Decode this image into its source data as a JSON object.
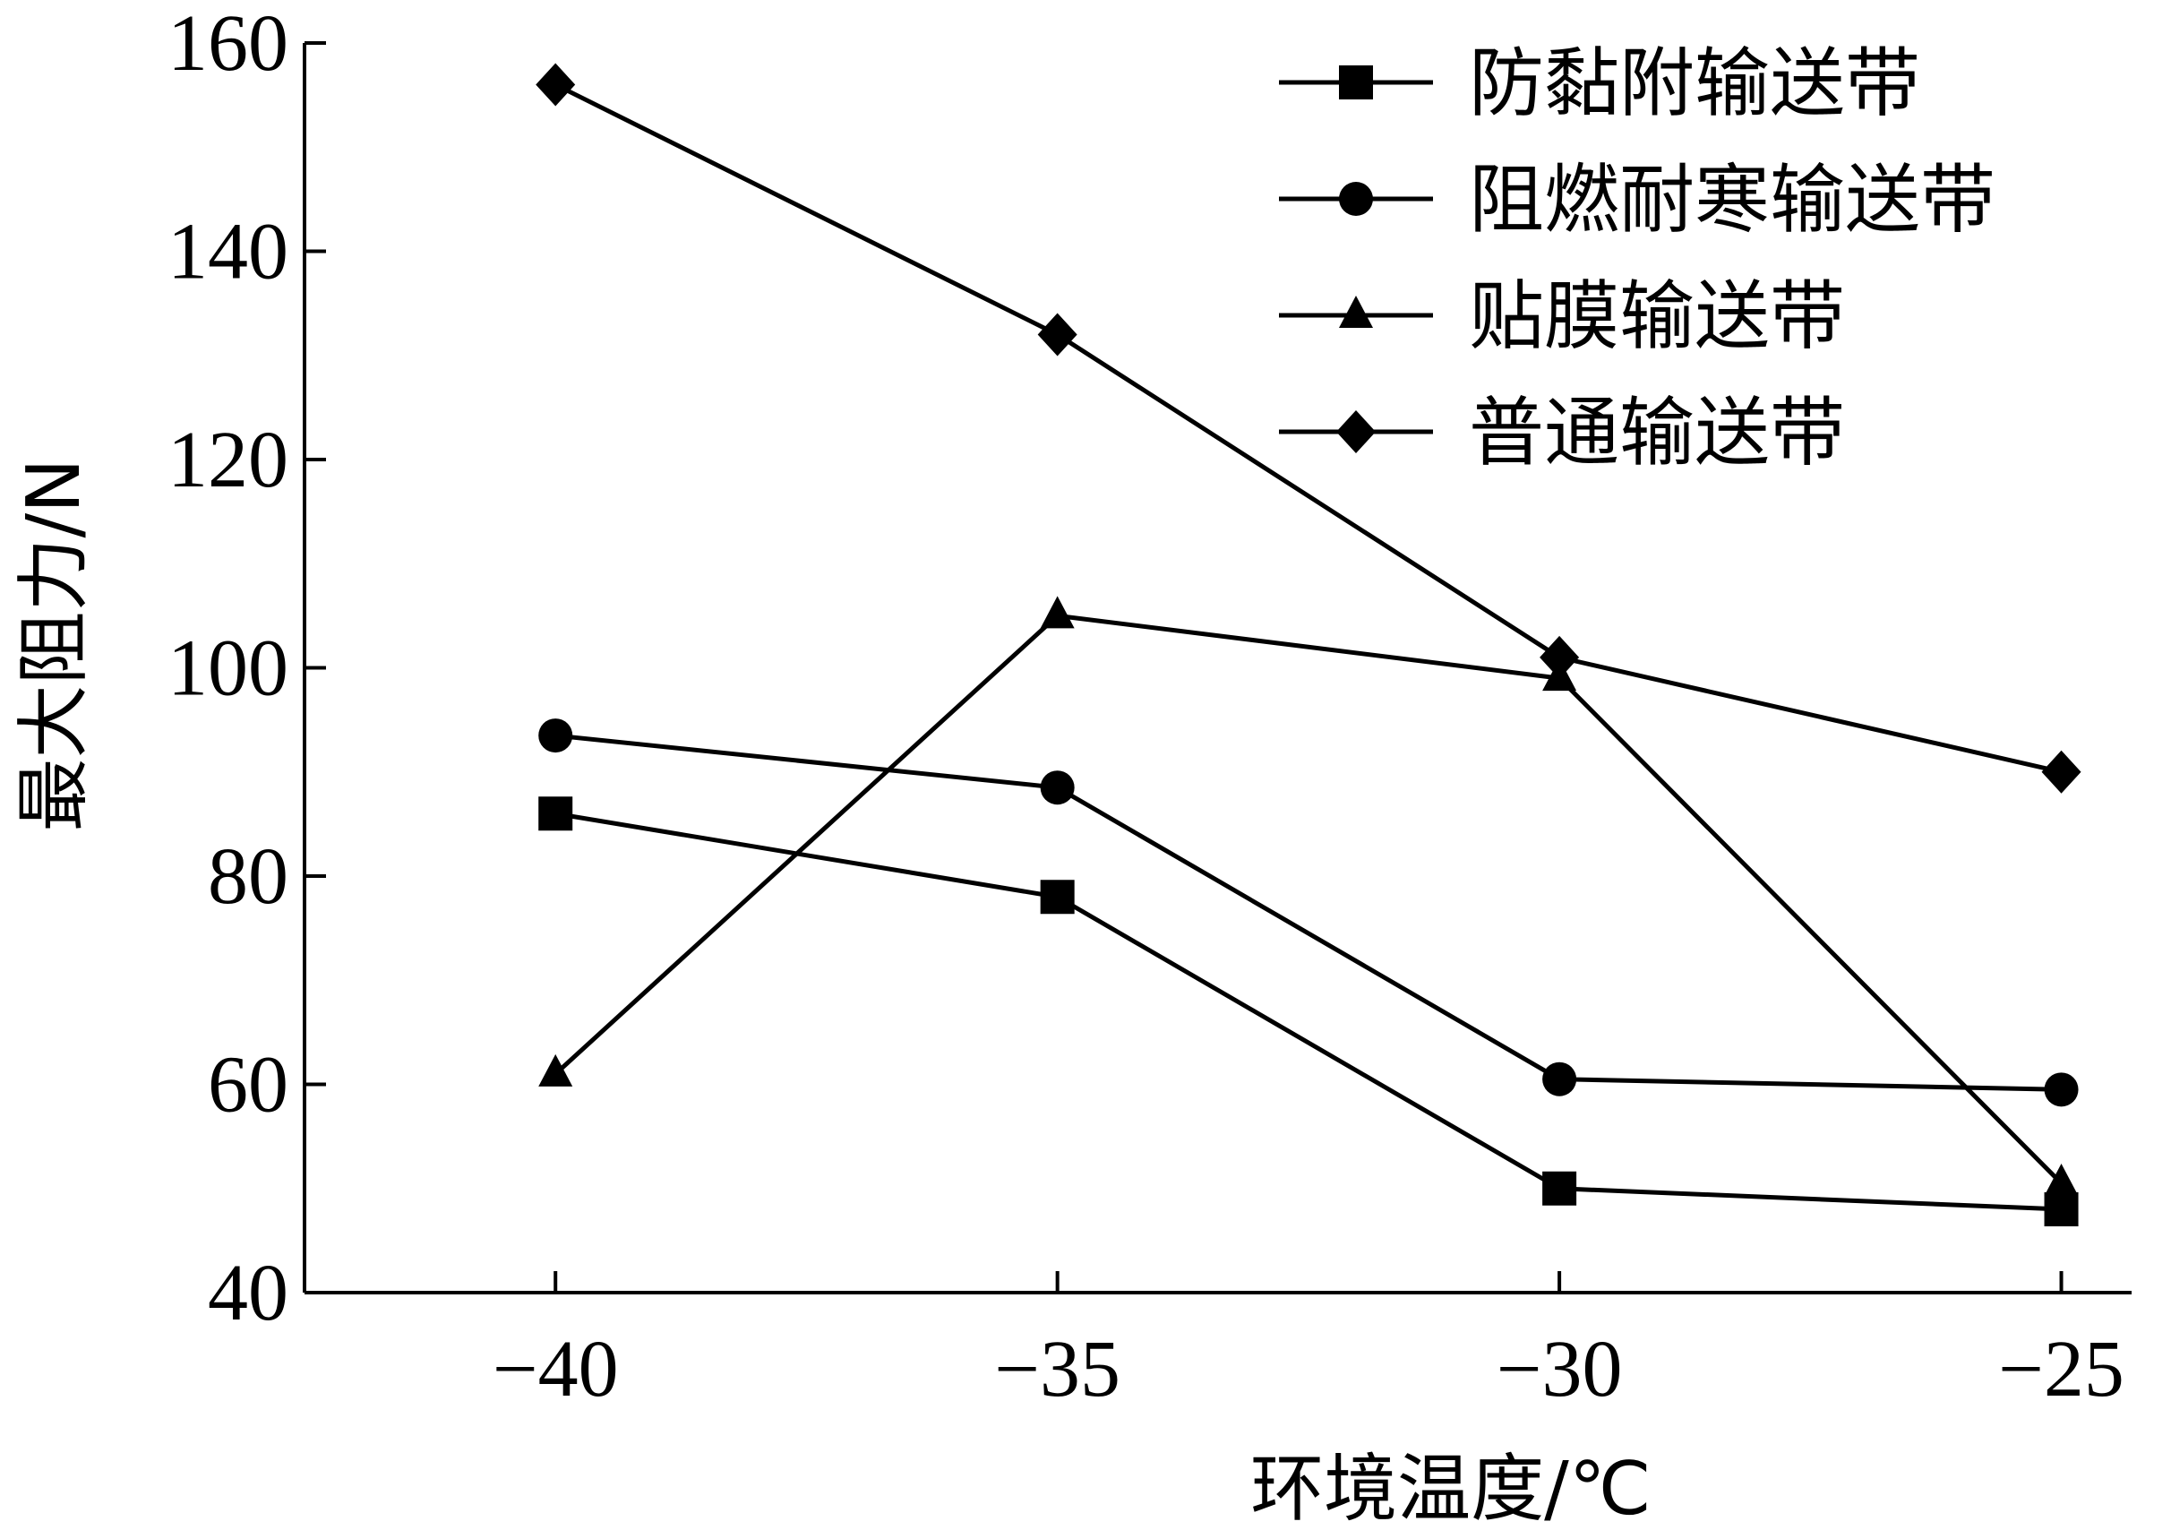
{
  "chart_data": {
    "type": "line",
    "title": "",
    "xlabel": "环境温度/℃",
    "ylabel": "最大阻力/N",
    "x": [
      -40,
      -35,
      -30,
      -25
    ],
    "x_tick_labels": [
      "−40",
      "−35",
      "−30",
      "−25"
    ],
    "xlim": [
      -42.5,
      -24.3
    ],
    "ylim": [
      40,
      160
    ],
    "y_ticks": [
      40,
      60,
      80,
      100,
      120,
      140,
      160
    ],
    "y_tick_labels": [
      "40",
      "60",
      "80",
      "100",
      "120",
      "140",
      "160"
    ],
    "grid": false,
    "legend_position": "top-right",
    "line_color": "#000000",
    "series": [
      {
        "name": "防黏附输送带",
        "marker": "square",
        "values": [
          86,
          78,
          50,
          48
        ]
      },
      {
        "name": "阻燃耐寒输送带",
        "marker": "circle",
        "values": [
          93.5,
          88.5,
          60.5,
          59.5
        ]
      },
      {
        "name": "贴膜输送带",
        "marker": "triangle",
        "values": [
          61,
          105,
          99,
          50.5
        ]
      },
      {
        "name": "普通输送带",
        "marker": "diamond",
        "values": [
          156,
          132,
          101,
          90
        ]
      }
    ]
  }
}
